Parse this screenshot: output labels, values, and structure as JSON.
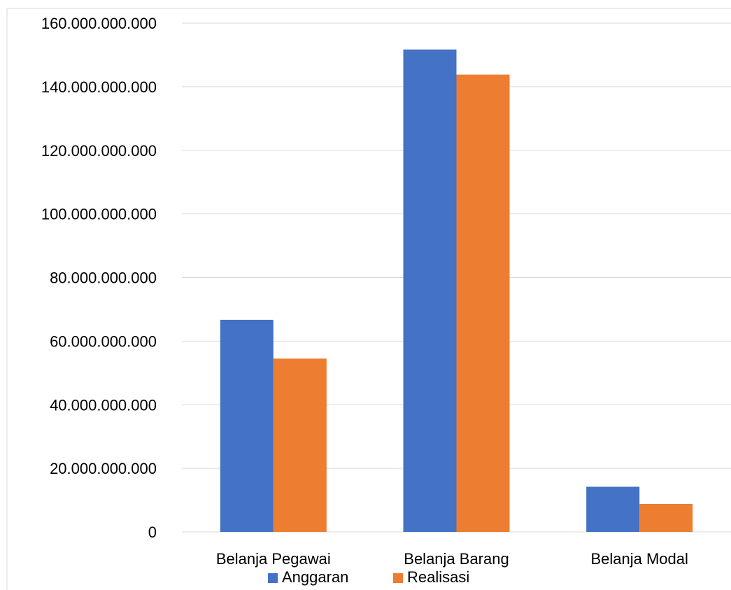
{
  "chart_data": {
    "type": "bar",
    "title": "",
    "xlabel": "",
    "ylabel": "",
    "categories": [
      "Belanja Pegawai",
      "Belanja Barang",
      "Belanja Modal"
    ],
    "series": [
      {
        "name": "Anggaran",
        "color": "#4472C4",
        "values": [
          66700000000,
          151700000000,
          14200000000
        ]
      },
      {
        "name": "Realisasi",
        "color": "#ED7D31",
        "values": [
          54500000000,
          143800000000,
          8800000000
        ]
      }
    ],
    "ylim": [
      0,
      160000000000
    ],
    "yticks": [
      0,
      20000000000,
      40000000000,
      60000000000,
      80000000000,
      100000000000,
      120000000000,
      140000000000,
      160000000000
    ],
    "ytick_labels": [
      "0",
      "20.000.000.000",
      "40.000.000.000",
      "60.000.000.000",
      "80.000.000.000",
      "100.000.000.000",
      "120.000.000.000",
      "140.000.000.000",
      "160.000.000.000"
    ],
    "grid": true,
    "legend_position": "bottom"
  }
}
